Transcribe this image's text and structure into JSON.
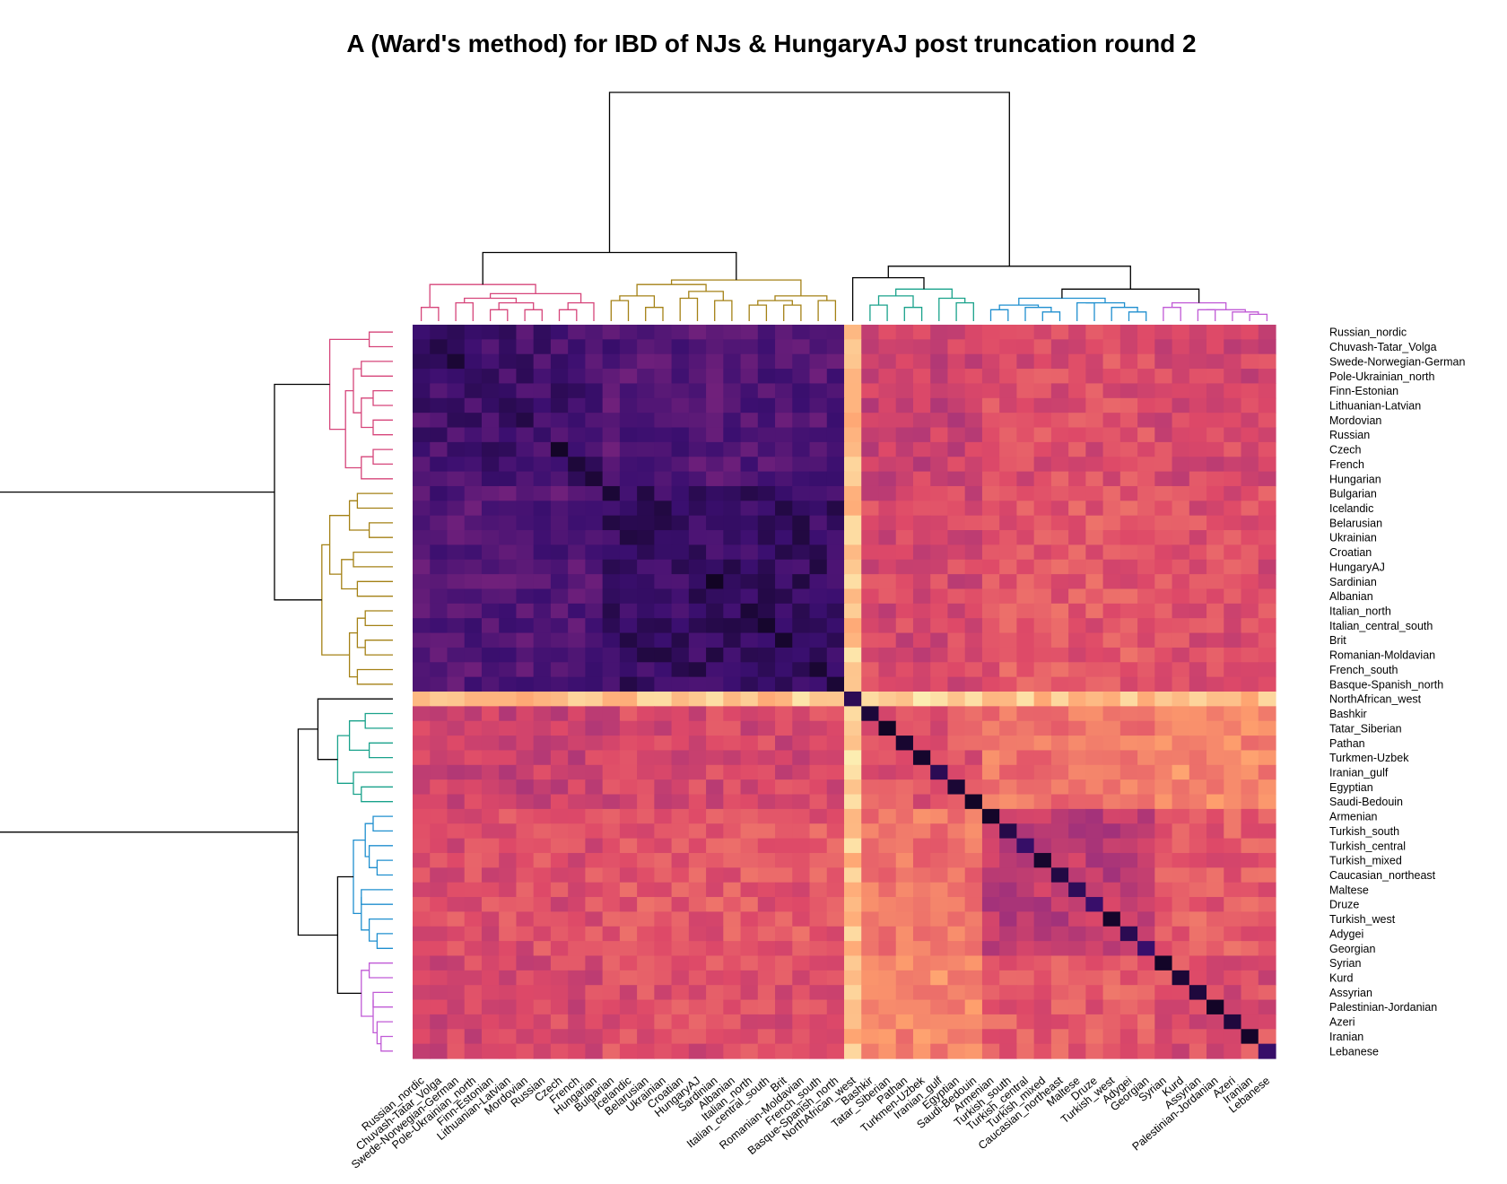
{
  "chart_data": {
    "type": "heatmap",
    "title": "A (Ward's method) for IBD of NJs & HungaryAJ post truncation round 2",
    "xlabel": "",
    "ylabel": "",
    "labels": [
      "Russian_nordic",
      "Chuvash-Tatar_Volga",
      "Swede-Norwegian-German",
      "Pole-Ukrainian_north",
      "Finn-Estonian",
      "Lithuanian-Latvian",
      "Mordovian",
      "Russian",
      "Czech",
      "French",
      "Hungarian",
      "Bulgarian",
      "Icelandic",
      "Belarusian",
      "Ukrainian",
      "Croatian",
      "HungaryAJ",
      "Sardinian",
      "Albanian",
      "Italian_north",
      "Italian_central_south",
      "Brit",
      "Romanian-Moldavian",
      "French_south",
      "Basque-Spanish_north",
      "NorthAfrican_west",
      "Bashkir",
      "Tatar_Siberian",
      "Pathan",
      "Turkmen-Uzbek",
      "Iranian_gulf",
      "Egyptian",
      "Saudi-Bedouin",
      "Armenian",
      "Turkish_south",
      "Turkish_central",
      "Turkish_mixed",
      "Caucasian_northeast",
      "Maltese",
      "Druze",
      "Turkish_west",
      "Adygei",
      "Georgian",
      "Syrian",
      "Kurd",
      "Assyrian",
      "Palestinian-Jordanian",
      "Azeri",
      "Iranian",
      "Lebanese"
    ],
    "highlight_label": "HungaryAJ",
    "colors": {
      "highlight": "#ff0000",
      "palette": [
        "#000004",
        "#3b0f70",
        "#8c2981",
        "#de4968",
        "#fe9f6d",
        "#fcfdbf"
      ],
      "dendrogram_root": "#000000",
      "cluster_pink": "#d6457a",
      "cluster_olive": "#a48115",
      "cluster_green": "#3aa02a",
      "cluster_teal": "#19a28b",
      "cluster_blue": "#1f8fcf",
      "cluster_violet": "#c05ad6"
    },
    "clusters": [
      {
        "name": "",
        "members": [
          "Russian_nordic",
          "Chuvash-Tatar_Volga",
          "Swede-Norwegian-German",
          "Pole-Ukrainian_north",
          "Finn-Estonian",
          "Lithuanian-Latvian",
          "Mordovian",
          "Russian",
          "Czech",
          "French",
          "Hungarian"
        ]
      },
      {
        "name": "",
        "members": [
          "Bulgarian",
          "Icelandic",
          "Belarusian",
          "Ukrainian",
          "Croatian",
          "HungaryAJ",
          "Sardinian",
          "Albanian",
          "Italian_north",
          "Italian_central_south",
          "Brit",
          "Romanian-Moldavian",
          "French_south",
          "Basque-Spanish_north"
        ]
      },
      {
        "name": "",
        "members": [
          "NorthAfrican_west"
        ]
      },
      {
        "name": "",
        "members": [
          "Bashkir",
          "Tatar_Siberian",
          "Pathan",
          "Turkmen-Uzbek",
          "Iranian_gulf",
          "Egyptian",
          "Saudi-Bedouin"
        ]
      },
      {
        "name": "",
        "members": [
          "Armenian",
          "Turkish_south",
          "Turkish_central",
          "Turkish_mixed",
          "Caucasian_northeast",
          "Maltese",
          "Druze",
          "Turkish_west",
          "Adygei",
          "Georgian"
        ]
      },
      {
        "name": "",
        "members": [
          "Syrian",
          "Kurd",
          "Assyrian",
          "Palestinian-Jordanian",
          "Azeri",
          "Iranian",
          "Lebanese"
        ]
      }
    ],
    "block_levels": [
      [
        0.22,
        0.26,
        0.88,
        0.55,
        0.6,
        0.58
      ],
      [
        0.26,
        0.18,
        0.88,
        0.58,
        0.63,
        0.6
      ],
      [
        0.88,
        0.88,
        0.3,
        0.9,
        0.88,
        0.86
      ],
      [
        0.55,
        0.58,
        0.9,
        0.62,
        0.7,
        0.74
      ],
      [
        0.6,
        0.63,
        0.88,
        0.7,
        0.52,
        0.64
      ],
      [
        0.58,
        0.6,
        0.86,
        0.74,
        0.64,
        0.6
      ]
    ],
    "diagonal_level": 0.05,
    "noise_amplitude": 0.07,
    "scale_min": 0,
    "scale_max": 1,
    "legend": "none",
    "grid": false
  }
}
